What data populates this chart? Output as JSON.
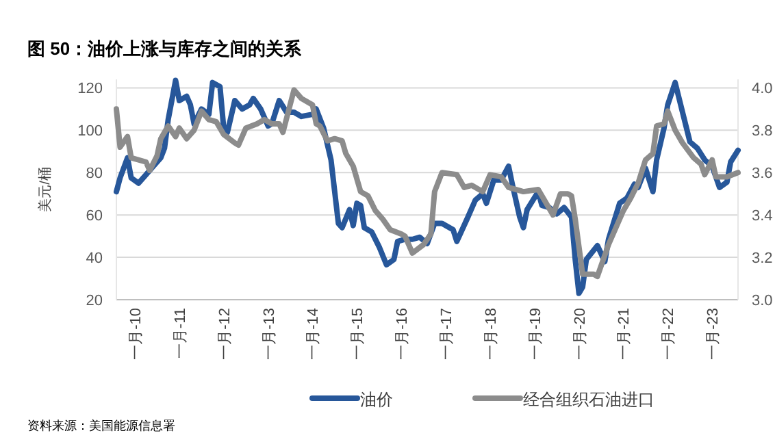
{
  "chart_data": {
    "type": "line",
    "title": "图 50：油价上涨与库存之间的关系",
    "ylabel": "美元/桶",
    "annotations": [
      "资料来源：美国能源信息署"
    ],
    "xlim": [
      "2009-08",
      "2023-08"
    ],
    "xticks": [
      {
        "value": "2010-01",
        "label": "一月-10"
      },
      {
        "value": "2011-01",
        "label": "一月-11"
      },
      {
        "value": "2012-01",
        "label": "一月-12"
      },
      {
        "value": "2013-01",
        "label": "一月-13"
      },
      {
        "value": "2014-01",
        "label": "一月-14"
      },
      {
        "value": "2015-01",
        "label": "一月-15"
      },
      {
        "value": "2016-01",
        "label": "一月-16"
      },
      {
        "value": "2017-01",
        "label": "一月-17"
      },
      {
        "value": "2018-01",
        "label": "一月-18"
      },
      {
        "value": "2019-01",
        "label": "一月-19"
      },
      {
        "value": "2020-01",
        "label": "一月-20"
      },
      {
        "value": "2021-01",
        "label": "一月-21"
      },
      {
        "value": "2022-01",
        "label": "一月-22"
      },
      {
        "value": "2023-01",
        "label": "一月-23"
      }
    ],
    "ylim": [
      20,
      124
    ],
    "yticks": [
      20,
      40,
      60,
      80,
      100,
      120
    ],
    "y2lim": [
      3.0,
      4.04
    ],
    "y2ticks": [
      {
        "value": 3.0,
        "label": "3.0"
      },
      3.2,
      3.4,
      3.6,
      3.8,
      {
        "value": 4.0,
        "label": "4.0"
      }
    ],
    "grid": "y",
    "legend": "bottom",
    "marker": "none",
    "line_style": "solid",
    "series": [
      {
        "name": "油价",
        "color": "#27579a",
        "x": [
          "2009-08",
          "2009-09",
          "2009-11",
          "2009-12",
          "2010-02",
          "2010-04",
          "2010-06",
          "2010-08",
          "2010-09",
          "2010-10",
          "2010-12",
          "2011-01",
          "2011-03",
          "2011-04",
          "2011-05",
          "2011-07",
          "2011-09",
          "2011-10",
          "2011-12",
          "2012-01",
          "2012-02",
          "2012-04",
          "2012-06",
          "2012-08",
          "2012-09",
          "2012-11",
          "2013-01",
          "2013-02",
          "2013-04",
          "2013-06",
          "2013-08",
          "2013-10",
          "2014-01",
          "2014-02",
          "2014-04",
          "2014-06",
          "2014-07",
          "2014-08",
          "2014-09",
          "2014-11",
          "2014-12",
          "2015-01",
          "2015-02",
          "2015-03",
          "2015-05",
          "2015-07",
          "2015-09",
          "2015-11",
          "2015-12",
          "2016-02",
          "2016-04",
          "2016-06",
          "2016-08",
          "2016-10",
          "2016-12",
          "2017-03",
          "2017-04",
          "2017-07",
          "2017-09",
          "2017-11",
          "2017-12",
          "2018-02",
          "2018-04",
          "2018-06",
          "2018-07",
          "2018-09",
          "2018-10",
          "2018-11",
          "2019-02",
          "2019-03",
          "2019-05",
          "2019-07",
          "2019-09",
          "2019-11",
          "2019-12",
          "2020-01",
          "2020-02",
          "2020-03",
          "2020-06",
          "2020-08",
          "2020-09",
          "2020-12",
          "2021-02",
          "2021-04",
          "2021-05",
          "2021-07",
          "2021-09",
          "2021-10",
          "2021-12",
          "2022-01",
          "2022-03",
          "2022-05",
          "2022-07",
          "2022-09",
          "2022-11",
          "2023-01",
          "2023-03",
          "2023-05",
          "2023-06",
          "2023-08"
        ],
        "values": [
          71,
          77.5,
          87,
          77.5,
          75,
          79,
          83,
          87,
          91.5,
          105,
          123.5,
          114,
          116,
          112,
          103,
          110,
          107.5,
          122.5,
          120.5,
          101,
          99,
          114,
          110,
          112,
          115,
          110,
          102,
          103,
          114,
          108.5,
          108.5,
          106.5,
          107.5,
          110,
          101,
          86,
          71,
          56,
          54,
          62.5,
          55,
          65.5,
          64.5,
          54,
          52,
          45,
          36.5,
          39,
          47.5,
          48.5,
          48.5,
          49.5,
          46.5,
          56,
          56,
          53,
          47.5,
          59,
          67,
          70,
          65.5,
          76.5,
          76.5,
          83,
          74.5,
          59,
          54,
          62.5,
          71,
          64.5,
          63.5,
          60.5,
          63.5,
          59,
          39,
          23,
          26,
          39,
          45.5,
          38,
          48.5,
          65.5,
          68,
          74.5,
          73,
          82,
          71,
          86,
          101,
          112,
          122.5,
          108.5,
          94.5,
          91.5,
          86,
          83,
          73,
          75.5,
          85,
          90.5
        ]
      },
      {
        "name": "经合组织石油进口",
        "color": "#8c8c8c",
        "axis": "y2",
        "x": [
          "2009-08",
          "2009-09",
          "2009-11",
          "2009-12",
          "2010-04",
          "2010-05",
          "2010-07",
          "2010-08",
          "2010-10",
          "2010-12",
          "2011-01",
          "2011-03",
          "2011-05",
          "2011-07",
          "2011-09",
          "2011-11",
          "2012-01",
          "2012-04",
          "2012-05",
          "2012-07",
          "2012-10",
          "2012-12",
          "2013-02",
          "2013-04",
          "2013-05",
          "2013-08",
          "2013-10",
          "2014-01",
          "2014-02",
          "2014-03",
          "2014-05",
          "2014-07",
          "2014-09",
          "2014-10",
          "2014-12",
          "2015-02",
          "2015-04",
          "2015-06",
          "2015-08",
          "2015-10",
          "2016-01",
          "2016-02",
          "2016-04",
          "2016-07",
          "2016-09",
          "2016-10",
          "2016-12",
          "2017-04",
          "2017-06",
          "2017-08",
          "2017-11",
          "2018-01",
          "2018-04",
          "2018-06",
          "2018-10",
          "2019-02",
          "2019-04",
          "2019-06",
          "2019-08",
          "2019-10",
          "2019-11",
          "2019-12",
          "2020-02",
          "2020-05",
          "2020-06",
          "2020-09",
          "2020-11",
          "2021-01",
          "2021-03",
          "2021-05",
          "2021-07",
          "2021-09",
          "2021-10",
          "2021-12",
          "2022-01",
          "2022-03",
          "2022-05",
          "2022-08",
          "2022-10",
          "2022-11",
          "2023-01",
          "2023-02",
          "2023-05",
          "2023-08"
        ],
        "values": [
          3.9,
          3.72,
          3.77,
          3.67,
          3.65,
          3.61,
          3.68,
          3.76,
          3.82,
          3.77,
          3.81,
          3.76,
          3.8,
          3.89,
          3.85,
          3.84,
          3.78,
          3.74,
          3.73,
          3.81,
          3.83,
          3.85,
          3.83,
          3.83,
          3.79,
          3.99,
          3.95,
          3.92,
          3.83,
          3.82,
          3.75,
          3.76,
          3.75,
          3.69,
          3.63,
          3.51,
          3.49,
          3.42,
          3.38,
          3.33,
          3.31,
          3.3,
          3.22,
          3.26,
          3.31,
          3.51,
          3.6,
          3.59,
          3.53,
          3.54,
          3.51,
          3.59,
          3.58,
          3.53,
          3.51,
          3.52,
          3.46,
          3.4,
          3.5,
          3.5,
          3.49,
          3.38,
          3.12,
          3.12,
          3.11,
          3.26,
          3.34,
          3.42,
          3.48,
          3.55,
          3.66,
          3.69,
          3.82,
          3.83,
          3.89,
          3.8,
          3.74,
          3.67,
          3.64,
          3.59,
          3.66,
          3.58,
          3.58,
          3.6
        ]
      }
    ]
  }
}
